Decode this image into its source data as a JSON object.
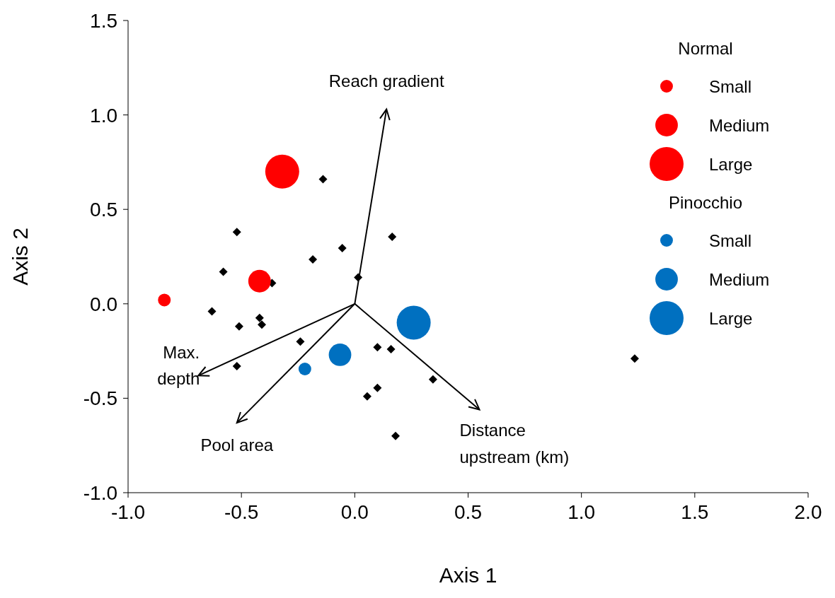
{
  "chart_data": {
    "type": "scatter",
    "xlabel": "Axis 1",
    "ylabel": "Axis 2",
    "xlim": [
      -1,
      2
    ],
    "ylim": [
      -1,
      1.5
    ],
    "xticks": [
      {
        "value": -1,
        "label": "-1.0"
      },
      {
        "value": -0.5,
        "label": "-0.5"
      },
      {
        "value": 0,
        "label": "0.0"
      },
      {
        "value": 0.5,
        "label": "0.5"
      },
      {
        "value": 1,
        "label": "1.0"
      },
      {
        "value": 1.5,
        "label": "1.5"
      },
      {
        "value": 2,
        "label": "2.0"
      }
    ],
    "yticks": [
      {
        "value": -1,
        "label": "-1.0"
      },
      {
        "value": -0.5,
        "label": "-0.5"
      },
      {
        "value": 0,
        "label": "0.0"
      },
      {
        "value": 0.5,
        "label": "0.5"
      },
      {
        "value": 1,
        "label": "1.0"
      },
      {
        "value": 1.5,
        "label": "1.5"
      }
    ],
    "legend": "top right",
    "series": [
      {
        "marker": "diamond",
        "color": "#000000",
        "x": [
          -0.14,
          -0.52,
          0.165,
          -0.055,
          -0.185,
          -0.58,
          0.015,
          -0.365,
          -0.63,
          -0.42,
          -0.51,
          -0.41,
          -0.24,
          0.1,
          0.16,
          -0.52,
          0.345,
          0.1,
          0.055,
          0.18,
          1.235
        ],
        "values": [
          0.66,
          0.38,
          0.355,
          0.295,
          0.235,
          0.17,
          0.14,
          0.11,
          -0.04,
          -0.075,
          -0.12,
          -0.11,
          -0.2,
          -0.23,
          -0.24,
          -0.33,
          -0.4,
          -0.445,
          -0.49,
          -0.7,
          -0.29
        ]
      },
      {
        "type": "bubble",
        "name": "Small",
        "color": "#ff0000",
        "x": [
          -0.84
        ],
        "values": [
          0.02
        ],
        "sizes": [
          0.14
        ]
      },
      {
        "type": "bubble",
        "name": "Medium",
        "color": "#ff0000",
        "x": [
          -0.42
        ],
        "values": [
          0.12
        ],
        "sizes": [
          0.44
        ]
      },
      {
        "type": "bubble",
        "name": "Large",
        "color": "#ff0000",
        "x": [
          -0.32
        ],
        "values": [
          0.7
        ],
        "sizes": [
          1
        ]
      },
      {
        "type": "bubble",
        "name": "Small",
        "color": "#0070c0",
        "x": [
          -0.22
        ],
        "values": [
          -0.345
        ],
        "sizes": [
          0.14
        ]
      },
      {
        "type": "bubble",
        "name": "Medium",
        "color": "#0070c0",
        "x": [
          -0.065
        ],
        "values": [
          -0.27
        ],
        "sizes": [
          0.44
        ]
      },
      {
        "type": "bubble",
        "name": "Large",
        "color": "#0070c0",
        "x": [
          0.26
        ],
        "values": [
          -0.1
        ],
        "sizes": [
          1
        ]
      }
    ],
    "annotations": [
      "Normal",
      "Pinocchio",
      "Reach gradient",
      "Max.\ndepth",
      "Pool area",
      "Distance\nupstream (km)"
    ]
  }
}
